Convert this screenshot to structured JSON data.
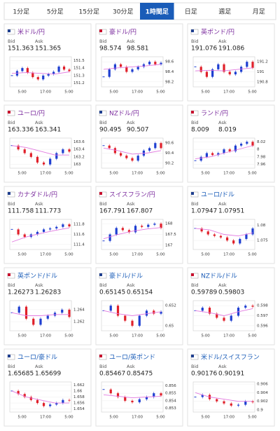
{
  "tabs": [
    "1分足",
    "5分足",
    "15分足",
    "30分足",
    "1時間足",
    "日足",
    "週足",
    "月足"
  ],
  "active_tab": 4,
  "labels": {
    "bid": "Bid",
    "ask": "Ask"
  },
  "x_labels": [
    "5:00",
    "17:00",
    "5:00"
  ],
  "up_color": "#1f3fd1",
  "down_color": "#e0202a",
  "avg_color": "#e27ae0",
  "cards": [
    {
      "name": "米ドル/円",
      "color": "#7b2c9e",
      "bid": "151.363",
      "ask": "151.365",
      "ylim": [
        151.15,
        151.55
      ],
      "yticks": [
        151.5,
        151.4,
        151.3,
        151.2
      ],
      "closes": [
        151.3,
        151.36,
        151.4,
        151.34,
        151.28,
        151.25,
        151.3,
        151.32,
        151.35,
        151.42,
        151.38,
        151.36
      ],
      "avg": [
        151.33,
        151.34,
        151.33,
        151.32,
        151.35
      ]
    },
    {
      "name": "豪ドル/円",
      "color": "#7b2c9e",
      "bid": "98.574",
      "ask": "98.581",
      "ylim": [
        98.1,
        98.7
      ],
      "yticks": [
        98.6,
        98.4,
        98.2
      ],
      "closes": [
        98.3,
        98.45,
        98.55,
        98.5,
        98.4,
        98.45,
        98.5,
        98.55,
        98.6,
        98.55,
        98.58
      ],
      "avg": [
        98.45,
        98.48,
        98.5,
        98.52,
        98.55
      ]
    },
    {
      "name": "英ポンド/円",
      "color": "#7b2c9e",
      "bid": "191.076",
      "ask": "191.086",
      "ylim": [
        190.7,
        191.3
      ],
      "yticks": [
        191.2,
        191,
        190.8
      ],
      "closes": [
        191.1,
        191.0,
        190.9,
        191.05,
        191.15,
        191.0,
        190.95,
        191.0,
        191.1,
        191.2,
        191.08
      ],
      "avg": [
        191.02,
        191.03,
        191.02,
        191.05,
        191.08
      ]
    },
    {
      "name": "ユーロ/円",
      "color": "#7b2c9e",
      "bid": "163.336",
      "ask": "163.341",
      "ylim": [
        162.9,
        163.7
      ],
      "yticks": [
        163.6,
        163.4,
        163.2,
        163
      ],
      "closes": [
        163.5,
        163.4,
        163.3,
        163.2,
        163.05,
        163.0,
        163.15,
        163.3,
        163.4,
        163.34
      ],
      "avg": [
        163.5,
        163.45,
        163.35,
        163.25,
        163.25
      ]
    },
    {
      "name": "NZドル/円",
      "color": "#7b2c9e",
      "bid": "90.495",
      "ask": "90.507",
      "ylim": [
        90.1,
        90.7
      ],
      "yticks": [
        90.6,
        90.4,
        90.2
      ],
      "closes": [
        90.55,
        90.5,
        90.4,
        90.35,
        90.3,
        90.25,
        90.35,
        90.45,
        90.5,
        90.6,
        90.5
      ],
      "avg": [
        90.5,
        90.45,
        90.38,
        90.4,
        90.45
      ]
    },
    {
      "name": "ランド/円",
      "color": "#7b2c9e",
      "bid": "8.009",
      "ask": "8.019",
      "ylim": [
        7.95,
        8.03
      ],
      "yticks": [
        8.02,
        8,
        7.98,
        7.96
      ],
      "closes": [
        7.97,
        7.98,
        7.99,
        7.985,
        7.99,
        8.0,
        7.995,
        8.01,
        8.015,
        8.02,
        8.01
      ],
      "avg": [
        7.975,
        7.98,
        7.99,
        8.0,
        8.01
      ]
    },
    {
      "name": "カナダドル/円",
      "color": "#7b2c9e",
      "bid": "111.758",
      "ask": "111.773",
      "ylim": [
        111.3,
        111.9
      ],
      "yticks": [
        111.8,
        111.6,
        111.4
      ],
      "closes": [
        111.7,
        111.6,
        111.55,
        111.6,
        111.65,
        111.7,
        111.72,
        111.75,
        111.8,
        111.76
      ],
      "avg": [
        111.45,
        111.55,
        111.62,
        111.68,
        111.73
      ]
    },
    {
      "name": "スイスフラン/円",
      "color": "#7b2c9e",
      "bid": "167.791",
      "ask": "167.807",
      "ylim": [
        166.8,
        168.2
      ],
      "yticks": [
        168,
        167.5,
        167
      ],
      "closes": [
        167.2,
        167.5,
        167.8,
        167.7,
        167.6,
        167.9,
        167.85,
        167.95,
        168.0,
        167.8
      ],
      "avg": [
        167.3,
        167.5,
        167.65,
        167.75,
        167.82
      ]
    },
    {
      "name": "ユーロ/ドル",
      "color": "#1a5cb8",
      "bid": "1.07947",
      "ask": "1.07951",
      "ylim": [
        1.072,
        1.082
      ],
      "yticks": [
        1.08,
        1.075
      ],
      "closes": [
        1.079,
        1.078,
        1.077,
        1.0765,
        1.076,
        1.075,
        1.074,
        1.0755,
        1.077,
        1.079
      ],
      "avg": [
        1.079,
        1.0785,
        1.077,
        1.0765,
        1.0775
      ]
    },
    {
      "name": "英ポンド/ドル",
      "color": "#1a5cb8",
      "bid": "1.26273",
      "ask": "1.26283",
      "ylim": [
        1.2605,
        1.2655
      ],
      "yticks": [
        1.264,
        1.262
      ],
      "closes": [
        1.2635,
        1.2645,
        1.2625,
        1.2615,
        1.2625,
        1.263,
        1.2635,
        1.264,
        1.2628
      ],
      "avg": [
        1.2635,
        1.263,
        1.263,
        1.2632,
        1.2632
      ]
    },
    {
      "name": "豪ドル/ドル",
      "color": "#1a5cb8",
      "bid": "0.65145",
      "ask": "0.65154",
      "ylim": [
        0.6495,
        0.6525
      ],
      "yticks": [
        0.652,
        0.65
      ],
      "closes": [
        0.6515,
        0.652,
        0.651,
        0.6505,
        0.65,
        0.651,
        0.6515,
        0.6512,
        0.6514
      ],
      "avg": [
        0.6515,
        0.6512,
        0.651,
        0.6512,
        0.6514
      ]
    },
    {
      "name": "NZドル/ドル",
      "color": "#1a5cb8",
      "bid": "0.59789",
      "ask": "0.59803",
      "ylim": [
        0.5955,
        0.5985
      ],
      "yticks": [
        0.598,
        0.597,
        0.596
      ],
      "closes": [
        0.5975,
        0.5978,
        0.5972,
        0.5968,
        0.5965,
        0.597,
        0.5978,
        0.598,
        0.5979
      ],
      "avg": [
        0.5975,
        0.5973,
        0.597,
        0.5974,
        0.5977
      ]
    },
    {
      "name": "ユーロ/豪ドル",
      "color": "#1a5cb8",
      "bid": "1.65685",
      "ask": "1.65699",
      "ylim": [
        1.653,
        1.663
      ],
      "yticks": [
        1.662,
        1.66,
        1.658,
        1.656,
        1.654
      ],
      "closes": [
        1.66,
        1.659,
        1.658,
        1.657,
        1.656,
        1.655,
        1.6555,
        1.656,
        1.657,
        1.6568
      ],
      "avg": [
        1.66,
        1.658,
        1.657,
        1.656,
        1.656
      ]
    },
    {
      "name": "ユーロ/英ポンド",
      "color": "#1a5cb8",
      "bid": "0.85467",
      "ask": "0.85475",
      "ylim": [
        0.8525,
        0.8565
      ],
      "yticks": [
        0.856,
        0.855,
        0.854,
        0.853
      ],
      "closes": [
        0.8555,
        0.855,
        0.8545,
        0.854,
        0.8538,
        0.8542,
        0.8545,
        0.855,
        0.8547
      ],
      "avg": [
        0.8548,
        0.8546,
        0.8544,
        0.8545,
        0.8546
      ]
    },
    {
      "name": "米ドル/スイスフラン",
      "color": "#1a5cb8",
      "bid": "0.90176",
      "ask": "0.90191",
      "ylim": [
        0.8995,
        0.9065
      ],
      "yticks": [
        0.906,
        0.904,
        0.902,
        0.9
      ],
      "closes": [
        0.903,
        0.9035,
        0.9025,
        0.902,
        0.9015,
        0.901,
        0.9012,
        0.902,
        0.9018
      ],
      "avg": [
        0.904,
        0.903,
        0.9025,
        0.902,
        0.902
      ]
    }
  ]
}
